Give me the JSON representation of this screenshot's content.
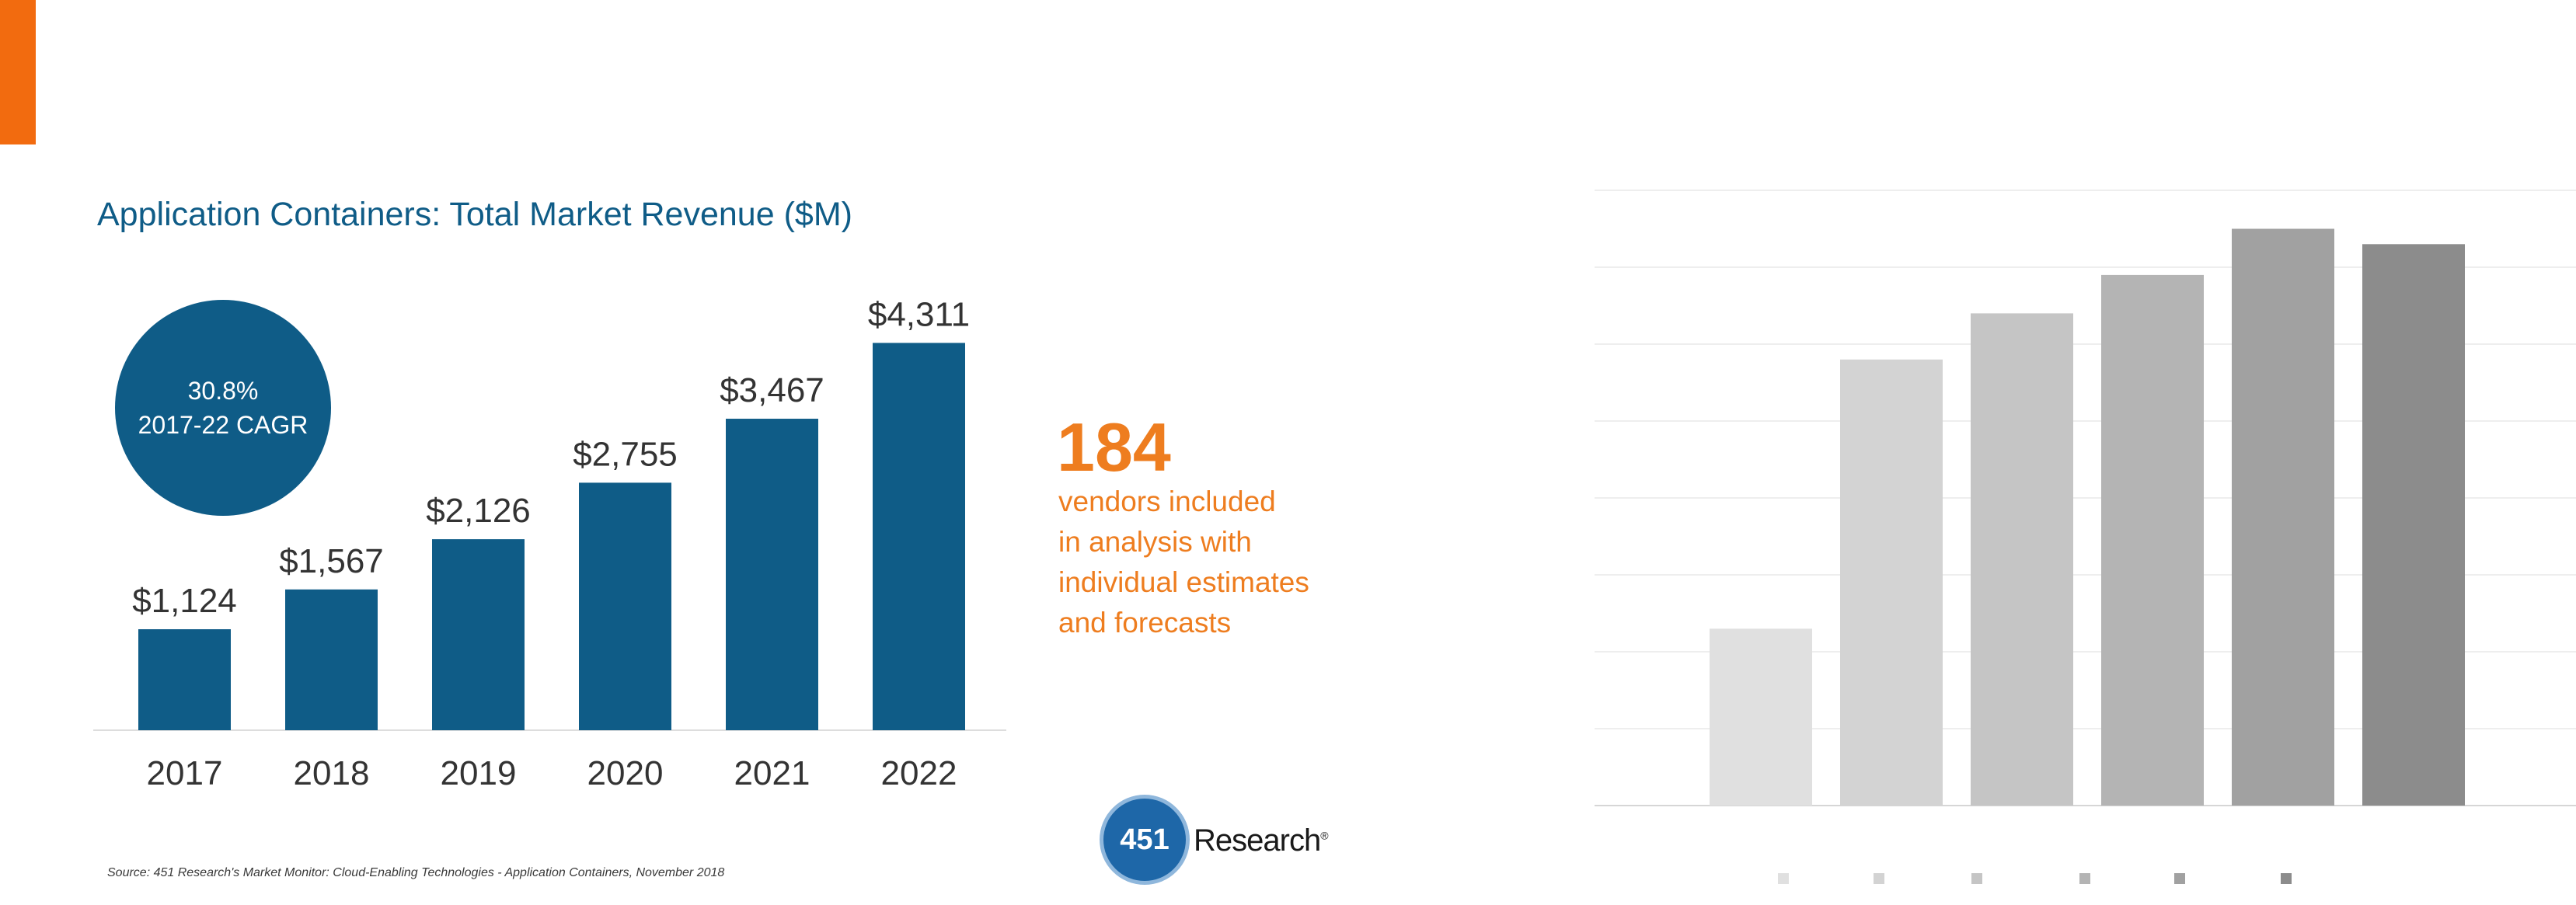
{
  "brand": {
    "accent": "#f26b0f",
    "primary": "#0f5c87",
    "callout": "#ee7d1f"
  },
  "chart_data": [
    {
      "type": "bar",
      "title": "Application Containers: Total Market Revenue ($M)",
      "categories": [
        "2017",
        "2018",
        "2019",
        "2020",
        "2021",
        "2022"
      ],
      "values": [
        1124,
        1567,
        2126,
        2755,
        3467,
        4311
      ],
      "data_labels": [
        "$1,124",
        "$1,567",
        "$2,126",
        "$2,755",
        "$3,467",
        "$4,311"
      ],
      "color": "#0f5c87",
      "ylim": [
        0,
        4600
      ],
      "grid": false,
      "legend": "none"
    },
    {
      "type": "bar",
      "values": [
        2300,
        5800,
        6400,
        6900,
        7500,
        7300
      ],
      "colors": [
        "#e0e0e0",
        "#d3d3d3",
        "#c5c5c5",
        "#b4b4b4",
        "#a1a1a1",
        "#8c8c8c"
      ],
      "ylim": [
        0,
        8000
      ],
      "grid": true,
      "legend": "bottom"
    }
  ],
  "cagr": {
    "value": "30.8%",
    "label": "2017-22 CAGR"
  },
  "callout": {
    "number": "184",
    "lines": [
      "vendors included",
      "in analysis with",
      "individual estimates",
      "and forecasts"
    ]
  },
  "source": "Source: 451 Research's Market Monitor: Cloud-Enabling Technologies - Application Containers, November 2018",
  "logo": {
    "mark": "451",
    "word": "Research"
  }
}
